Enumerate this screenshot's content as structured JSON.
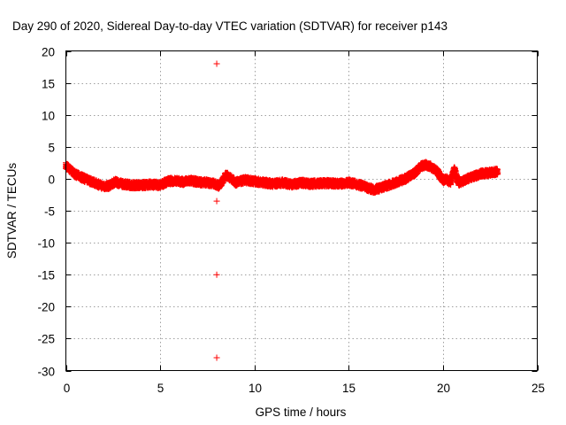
{
  "chart_data": {
    "type": "scatter",
    "title": "Day 290 of 2020, Sidereal Day-to-day VTEC variation (SDTVAR) for receiver p143",
    "xlabel": "GPS time / hours",
    "ylabel": "SDTVAR / TECUs",
    "xlim": [
      0,
      25
    ],
    "ylim": [
      -30,
      20
    ],
    "xticks": [
      0,
      5,
      10,
      15,
      20,
      25
    ],
    "yticks": [
      20,
      15,
      10,
      5,
      0,
      -5,
      -10,
      -15,
      -20,
      -25,
      -30
    ],
    "xtick_labels": [
      "0",
      "5",
      "10",
      "15",
      "20",
      "25"
    ],
    "ytick_labels": [
      "20",
      "15",
      "10",
      "5",
      "0",
      "-5",
      "-10",
      "-15",
      "-20",
      "-25",
      "-30"
    ],
    "grid": true,
    "marker": "+",
    "series": [
      {
        "name": "SDTVAR",
        "color": "#ff0000",
        "trend": {
          "x": [
            0.0,
            0.2,
            0.5,
            1.0,
            1.5,
            2.0,
            2.3,
            2.6,
            3.0,
            3.5,
            4.0,
            4.5,
            5.0,
            5.4,
            5.8,
            6.2,
            6.6,
            7.0,
            7.5,
            7.9,
            8.1,
            8.3,
            8.5,
            8.8,
            9.0,
            9.5,
            10.0,
            10.5,
            11.0,
            11.5,
            12.0,
            12.5,
            13.0,
            13.5,
            14.0,
            14.5,
            15.0,
            15.5,
            16.0,
            16.3,
            16.6,
            17.0,
            17.5,
            18.0,
            18.5,
            18.8,
            19.1,
            19.4,
            19.7,
            20.0,
            20.2,
            20.4,
            20.6,
            20.8,
            21.0,
            21.3,
            21.6,
            22.0,
            22.3,
            22.6,
            22.9
          ],
          "y": [
            2.1,
            1.5,
            0.7,
            0.0,
            -0.6,
            -1.2,
            -1.1,
            -0.5,
            -0.8,
            -1.0,
            -1.0,
            -0.9,
            -1.0,
            -0.4,
            -0.3,
            -0.5,
            -0.3,
            -0.5,
            -0.6,
            -0.8,
            -1.1,
            -0.4,
            0.6,
            0.0,
            -0.6,
            -0.2,
            -0.4,
            -0.6,
            -0.8,
            -0.6,
            -0.9,
            -0.6,
            -0.8,
            -0.7,
            -0.7,
            -0.8,
            -0.6,
            -0.9,
            -1.4,
            -1.7,
            -1.5,
            -1.1,
            -0.6,
            0.0,
            0.9,
            1.9,
            2.2,
            1.8,
            1.1,
            -0.2,
            -0.1,
            -0.6,
            1.5,
            -0.6,
            -0.5,
            0.0,
            0.3,
            0.8,
            0.9,
            1.0,
            1.1
          ],
          "spread": 1.0
        },
        "outliers": {
          "x": [
            8.0,
            8.0,
            8.0,
            8.0
          ],
          "y": [
            18.0,
            -3.5,
            -15.0,
            -28.0
          ]
        }
      }
    ]
  }
}
